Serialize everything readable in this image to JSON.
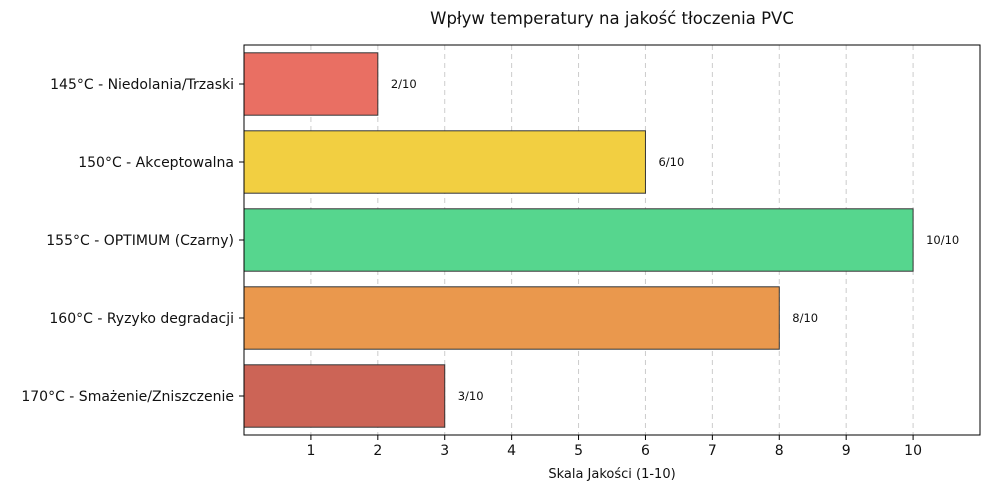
{
  "chart_data": {
    "type": "bar",
    "orientation": "horizontal",
    "title": "Wpływ temperatury na jakość tłoczenia PVC",
    "xlabel": "Skala Jakości (1-10)",
    "ylabel": "",
    "xlim": [
      0,
      11
    ],
    "xticks": [
      1,
      2,
      3,
      4,
      5,
      6,
      7,
      8,
      9,
      10
    ],
    "grid": "x-dashed",
    "categories": [
      "145°C - Niedolania/Trzaski",
      "150°C - Akceptowalna",
      "155°C - OPTIMUM (Czarny)",
      "160°C - Ryzyko degradacji",
      "170°C - Smażenie/Zniszczenie"
    ],
    "values": [
      2,
      6,
      10,
      8,
      3
    ],
    "data_labels": [
      "2/10",
      "6/10",
      "10/10",
      "8/10",
      "3/10"
    ],
    "colors": [
      "#e96f63",
      "#f2cf41",
      "#56d68e",
      "#ea984d",
      "#cc6456"
    ]
  }
}
